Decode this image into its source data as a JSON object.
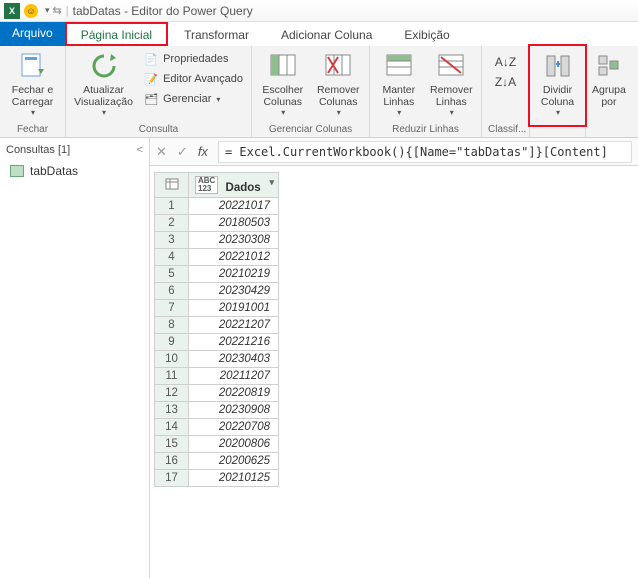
{
  "titlebar": {
    "title": "tabDatas - Editor do Power Query"
  },
  "tabs": {
    "file": "Arquivo",
    "home": "Página Inicial",
    "transform": "Transformar",
    "addcolumn": "Adicionar Coluna",
    "view": "Exibição"
  },
  "ribbon": {
    "close": {
      "big": "Fechar e\nCarregar",
      "group": "Fechar"
    },
    "query": {
      "refresh": "Atualizar\nVisualização",
      "properties": "Propriedades",
      "advanced": "Editor Avançado",
      "manage": "Gerenciar",
      "group": "Consulta"
    },
    "managecols": {
      "choose": "Escolher\nColunas",
      "remove": "Remover\nColunas",
      "group": "Gerenciar Colunas"
    },
    "reducerows": {
      "keep": "Manter\nLinhas",
      "remove": "Remover\nLinhas",
      "group": "Reduzir Linhas"
    },
    "sort": {
      "group": "Classif..."
    },
    "split": {
      "label": "Dividir\nColuna"
    },
    "groupby": {
      "label": "Agrupa\npor"
    }
  },
  "queries": {
    "header": "Consultas [1]",
    "item": "tabDatas"
  },
  "formula": "= Excel.CurrentWorkbook(){[Name=\"tabDatas\"]}[Content]",
  "table": {
    "column": "Dados",
    "type_label": "ABC\n123",
    "rows": [
      "20221017",
      "20180503",
      "20230308",
      "20221012",
      "20210219",
      "20230429",
      "20191001",
      "20221207",
      "20221216",
      "20230403",
      "20211207",
      "20220819",
      "20230908",
      "20220708",
      "20200806",
      "20200625",
      "20210125"
    ]
  },
  "colors": {
    "accent": "#0072c6",
    "highlight": "#e81123",
    "ribbon_bg": "#f3f3f3"
  }
}
